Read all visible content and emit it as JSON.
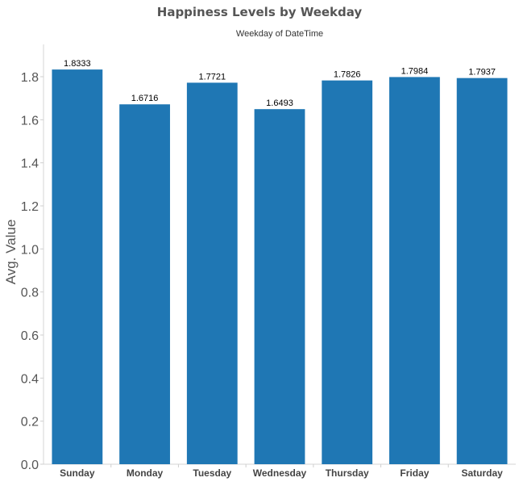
{
  "chart_data": {
    "type": "bar",
    "title": "Happiness Levels by Weekday",
    "subtitle": "Weekday of DateTime",
    "xlabel": "",
    "ylabel": "Avg. Value",
    "categories": [
      "Sunday",
      "Monday",
      "Tuesday",
      "Wednesday",
      "Thursday",
      "Friday",
      "Saturday"
    ],
    "values": [
      1.8333,
      1.6716,
      1.7721,
      1.6493,
      1.7826,
      1.7984,
      1.7937
    ],
    "data_labels": [
      "1.8333",
      "1.6716",
      "1.7721",
      "1.6493",
      "1.7826",
      "1.7984",
      "1.7937"
    ],
    "yticks": [
      "0.0",
      "0.2",
      "0.4",
      "0.6",
      "0.8",
      "1.0",
      "1.2",
      "1.4",
      "1.6",
      "1.8"
    ],
    "ylim": [
      0,
      1.95
    ],
    "grid": false,
    "legend": "none",
    "bar_color": "#1f77b4"
  }
}
